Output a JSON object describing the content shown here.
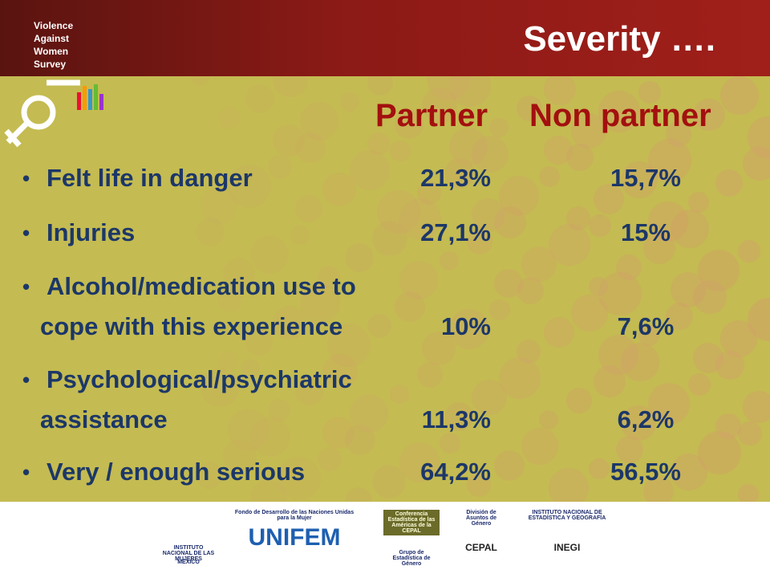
{
  "header": {
    "survey_label": [
      "Violence",
      "Against",
      "Women",
      "Survey"
    ],
    "title": "Severity …."
  },
  "table": {
    "columns": [
      "Partner",
      "Non partner"
    ],
    "rows": [
      {
        "label": [
          "Felt life in danger"
        ],
        "partner": "21,3%",
        "non_partner": "15,7%"
      },
      {
        "label": [
          "Injuries"
        ],
        "partner": "27,1%",
        "non_partner": "15%"
      },
      {
        "label": [
          "Alcohol/medication use to",
          "cope with this experience"
        ],
        "partner": "10%",
        "non_partner": "7,6%"
      },
      {
        "label": [
          "Psychological/psychiatric",
          "assistance"
        ],
        "partner": "11,3%",
        "non_partner": "6,2%"
      },
      {
        "label": [
          "Very / enough serious"
        ],
        "partner": "64,2%",
        "non_partner": "56,5%"
      }
    ]
  },
  "footer": {
    "logos": [
      {
        "name": "INSTITUTO NACIONAL DE LAS MUJERES",
        "sub": "MÉXICO"
      },
      {
        "name": "UNIFEM",
        "sub": "Fondo de Desarrollo de las Naciones Unidas para la Mujer"
      },
      {
        "name": "Conferencia Estadística de las Américas de la CEPAL",
        "sub": "Grupo de Estadística de Género"
      },
      {
        "name": "CEPAL",
        "sub": "División de Asuntos de Género"
      },
      {
        "name": "INEGI",
        "sub": "INSTITUTO NACIONAL DE ESTADÍSTICA Y GEOGRAFÍA"
      }
    ]
  }
}
